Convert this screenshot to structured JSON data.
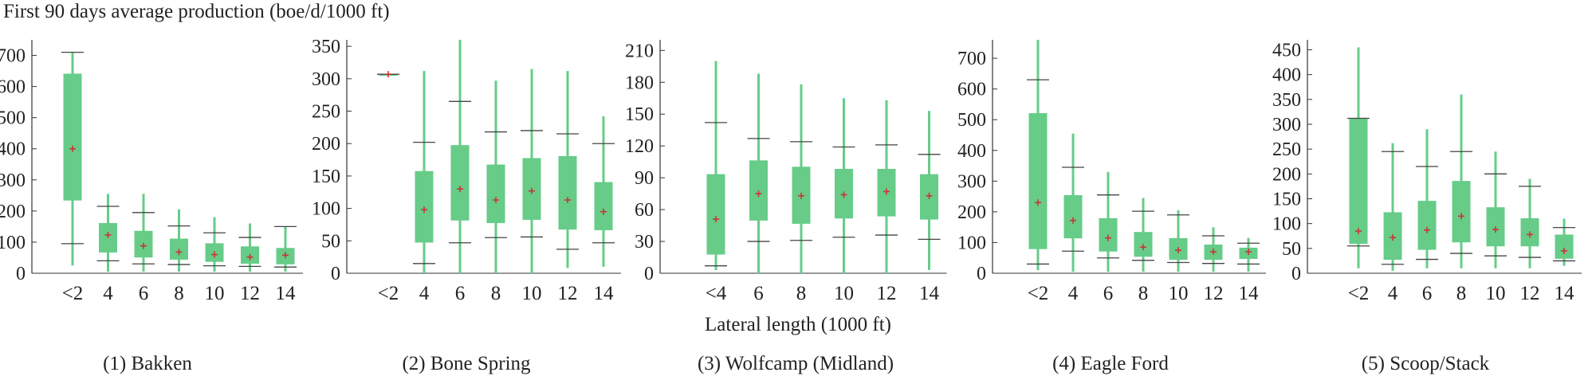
{
  "figure": {
    "ylabel": "First 90 days average production (boe/d/1000 ft)",
    "xlabel": "Lateral length (1000 ft)",
    "colors": {
      "box": "#66cc88",
      "mean": "#cc3333",
      "whisker": "#444444"
    }
  },
  "chart_data": [
    {
      "type": "box",
      "title": "(1) Bakken",
      "categories": [
        "<2",
        "4",
        "6",
        "8",
        "10",
        "12",
        "14"
      ],
      "ylim": [
        0,
        750
      ],
      "yticks": [
        0,
        100,
        200,
        300,
        400,
        500,
        600,
        700
      ],
      "boxes": [
        {
          "min": 25,
          "p10": 95,
          "q1": 235,
          "q3": 640,
          "p90": 710,
          "max": 710,
          "mean": 400
        },
        {
          "min": 5,
          "p10": 40,
          "q1": 68,
          "q3": 160,
          "p90": 215,
          "max": 255,
          "mean": 123
        },
        {
          "min": 5,
          "p10": 30,
          "q1": 52,
          "q3": 135,
          "p90": 195,
          "max": 255,
          "mean": 88
        },
        {
          "min": 5,
          "p10": 28,
          "q1": 45,
          "q3": 110,
          "p90": 152,
          "max": 205,
          "mean": 68
        },
        {
          "min": 5,
          "p10": 24,
          "q1": 38,
          "q3": 95,
          "p90": 130,
          "max": 180,
          "mean": 60
        },
        {
          "min": 5,
          "p10": 22,
          "q1": 32,
          "q3": 85,
          "p90": 115,
          "max": 160,
          "mean": 52
        },
        {
          "min": 5,
          "p10": 20,
          "q1": 30,
          "q3": 80,
          "p90": 150,
          "max": 150,
          "mean": 58
        }
      ]
    },
    {
      "type": "box",
      "title": "(2) Bone Spring",
      "categories": [
        "<2",
        "4",
        "6",
        "8",
        "10",
        "12",
        "14"
      ],
      "ylim": [
        0,
        360
      ],
      "yticks": [
        0,
        50,
        100,
        150,
        200,
        250,
        300,
        350
      ],
      "boxes": [
        {
          "min": 307,
          "p10": 307,
          "q1": 307,
          "q3": 307,
          "p90": 307,
          "max": 307,
          "mean": 307
        },
        {
          "min": 0,
          "p10": 15,
          "q1": 48,
          "q3": 157,
          "p90": 202,
          "max": 312,
          "mean": 98
        },
        {
          "min": 0,
          "p10": 47,
          "q1": 82,
          "q3": 197,
          "p90": 265,
          "max": 360,
          "mean": 130
        },
        {
          "min": 0,
          "p10": 55,
          "q1": 78,
          "q3": 167,
          "p90": 218,
          "max": 297,
          "mean": 113
        },
        {
          "min": 0,
          "p10": 56,
          "q1": 83,
          "q3": 177,
          "p90": 220,
          "max": 315,
          "mean": 127
        },
        {
          "min": 8,
          "p10": 37,
          "q1": 68,
          "q3": 180,
          "p90": 215,
          "max": 312,
          "mean": 113
        },
        {
          "min": 10,
          "p10": 47,
          "q1": 67,
          "q3": 140,
          "p90": 200,
          "max": 242,
          "mean": 95
        }
      ]
    },
    {
      "type": "box",
      "title": "(3) Wolfcamp (Midland)",
      "categories": [
        "<4",
        "6",
        "8",
        "10",
        "12",
        "14"
      ],
      "ylim": [
        0,
        220
      ],
      "yticks": [
        0,
        30,
        60,
        90,
        120,
        150,
        180,
        210
      ],
      "boxes": [
        {
          "min": 3,
          "p10": 7,
          "q1": 18,
          "q3": 93,
          "p90": 142,
          "max": 200,
          "mean": 51
        },
        {
          "min": 0,
          "p10": 30,
          "q1": 50,
          "q3": 106,
          "p90": 127,
          "max": 188,
          "mean": 75
        },
        {
          "min": 0,
          "p10": 31,
          "q1": 47,
          "q3": 100,
          "p90": 124,
          "max": 178,
          "mean": 73
        },
        {
          "min": 0,
          "p10": 34,
          "q1": 52,
          "q3": 98,
          "p90": 119,
          "max": 165,
          "mean": 74
        },
        {
          "min": 0,
          "p10": 36,
          "q1": 54,
          "q3": 98,
          "p90": 121,
          "max": 163,
          "mean": 77
        },
        {
          "min": 3,
          "p10": 32,
          "q1": 51,
          "q3": 93,
          "p90": 112,
          "max": 153,
          "mean": 73
        }
      ]
    },
    {
      "type": "box",
      "title": "(4) Eagle Ford",
      "categories": [
        "<2",
        "4",
        "6",
        "8",
        "10",
        "12",
        "14"
      ],
      "ylim": [
        0,
        760
      ],
      "yticks": [
        0,
        100,
        200,
        300,
        400,
        500,
        600,
        700
      ],
      "boxes": [
        {
          "min": 10,
          "p10": 30,
          "q1": 80,
          "q3": 520,
          "p90": 630,
          "max": 760,
          "mean": 230
        },
        {
          "min": 5,
          "p10": 72,
          "q1": 115,
          "q3": 253,
          "p90": 345,
          "max": 455,
          "mean": 172
        },
        {
          "min": 5,
          "p10": 50,
          "q1": 72,
          "q3": 178,
          "p90": 255,
          "max": 330,
          "mean": 115
        },
        {
          "min": 5,
          "p10": 42,
          "q1": 55,
          "q3": 133,
          "p90": 202,
          "max": 245,
          "mean": 85
        },
        {
          "min": 5,
          "p10": 35,
          "q1": 45,
          "q3": 113,
          "p90": 190,
          "max": 205,
          "mean": 75
        },
        {
          "min": 5,
          "p10": 32,
          "q1": 45,
          "q3": 92,
          "p90": 122,
          "max": 150,
          "mean": 70
        },
        {
          "min": 5,
          "p10": 30,
          "q1": 48,
          "q3": 82,
          "p90": 98,
          "max": 115,
          "mean": 70
        }
      ]
    },
    {
      "type": "box",
      "title": "(5) Scoop/Stack",
      "categories": [
        "<2",
        "4",
        "6",
        "8",
        "10",
        "12",
        "14"
      ],
      "ylim": [
        0,
        470
      ],
      "yticks": [
        0,
        50,
        100,
        150,
        200,
        250,
        300,
        350,
        400,
        450
      ],
      "boxes": [
        {
          "min": 10,
          "p10": 55,
          "q1": 60,
          "q3": 312,
          "p90": 312,
          "max": 455,
          "mean": 85
        },
        {
          "min": 5,
          "p10": 18,
          "q1": 28,
          "q3": 122,
          "p90": 245,
          "max": 262,
          "mean": 72
        },
        {
          "min": 10,
          "p10": 28,
          "q1": 48,
          "q3": 145,
          "p90": 215,
          "max": 290,
          "mean": 87
        },
        {
          "min": 10,
          "p10": 40,
          "q1": 63,
          "q3": 185,
          "p90": 245,
          "max": 360,
          "mean": 115
        },
        {
          "min": 10,
          "p10": 35,
          "q1": 55,
          "q3": 132,
          "p90": 200,
          "max": 245,
          "mean": 88
        },
        {
          "min": 10,
          "p10": 32,
          "q1": 55,
          "q3": 110,
          "p90": 175,
          "max": 190,
          "mean": 78
        },
        {
          "min": 15,
          "p10": 25,
          "q1": 30,
          "q3": 77,
          "p90": 92,
          "max": 110,
          "mean": 45
        }
      ]
    }
  ]
}
